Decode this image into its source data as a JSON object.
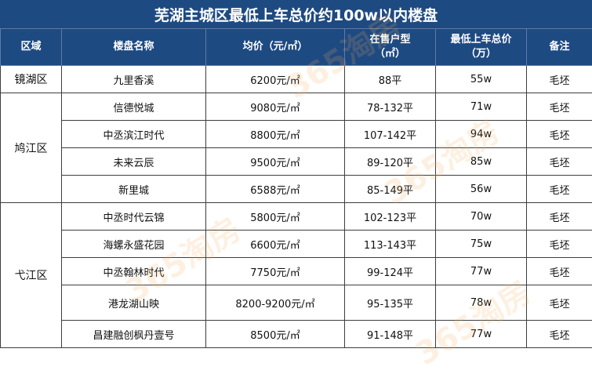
{
  "title": "芜湖主城区最低上车总价约100w以内楼盘",
  "headers": [
    "区域",
    "楼盘名称",
    "均价（元/㎡）",
    "在售户型",
    "（㎡）",
    "最低上车总价",
    "（万）",
    "备注"
  ],
  "districts": [
    "镜湖区",
    "鸠江区",
    "弋江区"
  ],
  "rows": [
    {
      "name": "九里香溪",
      "price": "6200元/㎡",
      "area": "88平",
      "total": "55w",
      "note": "毛坯"
    },
    {
      "name": "信德悦城",
      "price": "9080元/㎡",
      "area": "78-132平",
      "total": "71w",
      "note": "毛坯"
    },
    {
      "name": "中丞滨江时代",
      "price": "8800元/㎡",
      "area": "107-142平",
      "total": "94w",
      "note": "毛坯"
    },
    {
      "name": "未来云辰",
      "price": "9500元/㎡",
      "area": "89-120平",
      "total": "85w",
      "note": "毛坯"
    },
    {
      "name": "新里城",
      "price": "6588元/㎡",
      "area": "85-149平",
      "total": "56w",
      "note": "毛坯"
    },
    {
      "name": "中丞时代云锦",
      "price": "5800元/㎡",
      "area": "102-123平",
      "total": "70w",
      "note": "毛坯"
    },
    {
      "name": "海螺永盛花园",
      "price": "6600元/㎡",
      "area": "113-143平",
      "total": "75w",
      "note": "毛坯"
    },
    {
      "name": "中丞翰林时代",
      "price": "7750元/㎡",
      "area": "99-124平",
      "total": "77w",
      "note": "毛坯"
    },
    {
      "name": "港龙湖山映",
      "price": "8200-9200元/㎡",
      "area": "95-135平",
      "total": "78w",
      "note": "毛坯"
    },
    {
      "name": "昌建融创枫丹壹号",
      "price": "8500元/㎡",
      "area": "91-148平",
      "total": "77w",
      "note": "毛坯"
    }
  ],
  "watermark": "365淘房",
  "colors": {
    "header_bg": "#1e4a82",
    "header_text": "#ffffff",
    "border": "#3d3d3d",
    "watermark": "#faaa5a"
  }
}
